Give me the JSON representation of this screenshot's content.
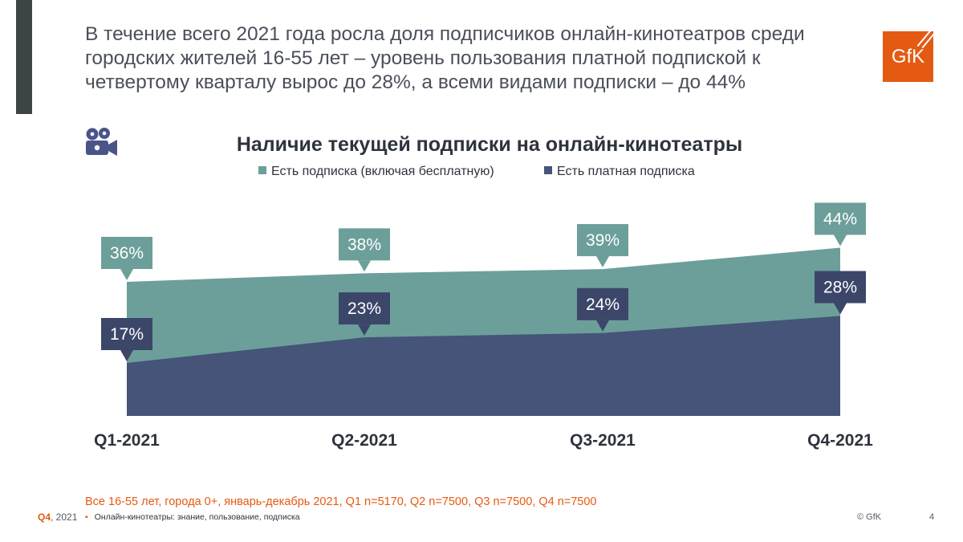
{
  "headline": {
    "line1": "В течение всего 2021 года росла доля подписчиков онлайн-кинотеатров среди",
    "line2": "городских жителей 16-55 лет – уровень пользования платной подпиской к",
    "line3": "четвертому кварталу вырос до 28%, а всеми видами подписки – до 44%"
  },
  "logo": {
    "text": "GfK",
    "color": "#e55a12"
  },
  "icon": {
    "name": "movie-camera-icon",
    "color": "#4a5488"
  },
  "chart_data": {
    "type": "area",
    "title": "Наличие текущей подписки на онлайн-кинотеатры",
    "categories": [
      "Q1-2021",
      "Q2-2021",
      "Q3-2021",
      "Q4-2021"
    ],
    "unit": "%",
    "ylim": [
      0,
      60
    ],
    "grid": false,
    "legend_position": "top",
    "series": [
      {
        "name": "Есть подписка (включая бесплатную)",
        "values": [
          36,
          38,
          39,
          44
        ],
        "color": "#6c9f9a",
        "label_color": "#6c9f9a"
      },
      {
        "name": "Есть платная подписка",
        "values": [
          17,
          23,
          24,
          28
        ],
        "color": "#455478",
        "label_color": "#3b4669"
      }
    ],
    "data_labels": [
      [
        "36%",
        "38%",
        "39%",
        "44%"
      ],
      [
        "17%",
        "23%",
        "24%",
        "28%"
      ]
    ]
  },
  "source": "Все 16-55 лет, города 0+, январь-декабрь 2021, Q1 n=5170, Q2 n=7500, Q3 n=7500, Q4 n=7500",
  "footer": {
    "quarter": "Q4",
    "year": ", 2021",
    "bullet": "▪",
    "topic": "Онлайн-кинотеатры: знание, пользование, подписка",
    "copyright": "© GfK",
    "page": "4"
  }
}
